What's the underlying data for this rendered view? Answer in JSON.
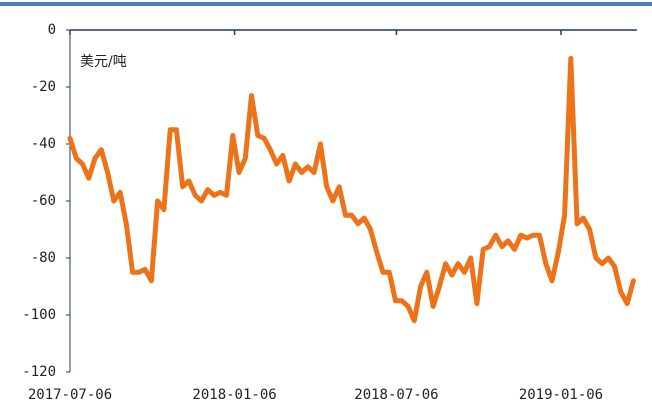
{
  "chart_data": {
    "type": "line",
    "annotation": "美元/吨",
    "color": "#ec7319",
    "x": [
      "2017-07-06",
      "2017-07-13",
      "2017-07-20",
      "2017-07-27",
      "2017-08-03",
      "2017-08-10",
      "2017-08-17",
      "2017-08-24",
      "2017-08-31",
      "2017-09-07",
      "2017-09-14",
      "2017-09-21",
      "2017-09-28",
      "2017-10-05",
      "2017-10-12",
      "2017-10-19",
      "2017-10-26",
      "2017-11-02",
      "2017-11-09",
      "2017-11-16",
      "2017-11-23",
      "2017-11-30",
      "2017-12-07",
      "2017-12-14",
      "2017-12-21",
      "2017-12-28",
      "2018-01-04",
      "2018-01-11",
      "2018-01-18",
      "2018-01-25",
      "2018-02-01",
      "2018-02-08",
      "2018-02-15",
      "2018-02-22",
      "2018-03-01",
      "2018-03-08",
      "2018-03-15",
      "2018-03-22",
      "2018-03-29",
      "2018-04-05",
      "2018-04-12",
      "2018-04-19",
      "2018-04-26",
      "2018-05-03",
      "2018-05-10",
      "2018-05-17",
      "2018-05-24",
      "2018-05-31",
      "2018-06-07",
      "2018-06-14",
      "2018-06-21",
      "2018-06-28",
      "2018-07-05",
      "2018-07-12",
      "2018-07-19",
      "2018-07-26",
      "2018-08-02",
      "2018-08-09",
      "2018-08-16",
      "2018-08-23",
      "2018-08-30",
      "2018-09-06",
      "2018-09-13",
      "2018-09-20",
      "2018-09-27",
      "2018-10-04",
      "2018-10-11",
      "2018-10-18",
      "2018-10-25",
      "2018-11-01",
      "2018-11-08",
      "2018-11-15",
      "2018-11-22",
      "2018-11-29",
      "2018-12-06",
      "2018-12-13",
      "2018-12-20",
      "2018-12-27",
      "2019-01-03",
      "2019-01-10",
      "2019-01-17",
      "2019-01-24",
      "2019-01-31",
      "2019-02-07",
      "2019-02-14",
      "2019-02-21",
      "2019-02-28",
      "2019-03-07",
      "2019-03-14",
      "2019-03-21",
      "2019-03-28"
    ],
    "values": [
      -38,
      -45,
      -47,
      -52,
      -45,
      -42,
      -50,
      -60,
      -57,
      -68,
      -85,
      -85,
      -84,
      -88,
      -60,
      -63,
      -35,
      -35,
      -55,
      -53,
      -58,
      -60,
      -56,
      -58,
      -57,
      -58,
      -37,
      -50,
      -45,
      -23,
      -37,
      -38,
      -42,
      -47,
      -44,
      -53,
      -47,
      -50,
      -48,
      -50,
      -40,
      -55,
      -60,
      -55,
      -65,
      -65,
      -68,
      -66,
      -70,
      -78,
      -85,
      -85,
      -95,
      -95,
      -97,
      -102,
      -90,
      -85,
      -97,
      -90,
      -82,
      -86,
      -82,
      -85,
      -80,
      -96,
      -77,
      -76,
      -72,
      -76,
      -74,
      -77,
      -72,
      -73,
      -72,
      -72,
      -82,
      -88,
      -78,
      -65,
      -10,
      -68,
      -66,
      -70,
      -80,
      -82,
      -80,
      -83,
      -92,
      -96,
      -88
    ],
    "xlim": [
      "2017-07-06",
      "2019-04-01"
    ],
    "xticks": [
      "2017-07-06",
      "2018-01-06",
      "2018-07-06",
      "2019-01-06"
    ],
    "ylim": [
      -120,
      0
    ],
    "yticks": [
      0,
      -20,
      -40,
      -60,
      -80,
      -100,
      -120
    ]
  }
}
